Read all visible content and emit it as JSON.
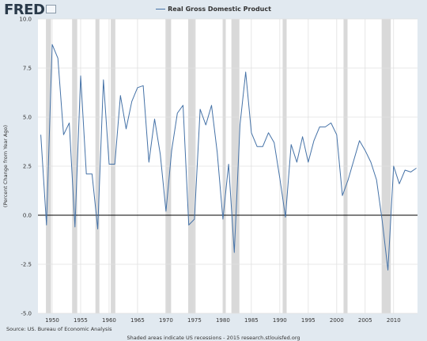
{
  "header": {
    "logo_text": "FRED",
    "logo_icon": "chart-line-icon"
  },
  "footer": {
    "source": "Source: US. Bureau of Economic Analysis",
    "note": "Shaded areas indicate US recessions - 2015 research.stlouisfed.org"
  },
  "colors": {
    "line": "#4572a7",
    "recession": "#d9d9d9",
    "plot_bg": "#ffffff",
    "zero_line": "#000000"
  },
  "chart_data": {
    "type": "line",
    "title": "",
    "legend_position": "top-center",
    "xlabel": "",
    "ylabel": "(Percent Change from Year Ago)",
    "grid": true,
    "xlim": [
      1947.5,
      2014.2
    ],
    "ylim": [
      -5,
      10
    ],
    "x_ticks": [
      1950,
      1955,
      1960,
      1965,
      1970,
      1975,
      1980,
      1985,
      1990,
      1995,
      2000,
      2005,
      2010
    ],
    "y_ticks": [
      -5,
      -2.5,
      0,
      2.5,
      5,
      7.5,
      10
    ],
    "y_tick_labels": [
      "-5.0",
      "-2.5",
      "0.0",
      "2.5",
      "5.0",
      "7.5",
      "10.0"
    ],
    "recessions": [
      [
        1948.9,
        1949.8
      ],
      [
        1953.5,
        1954.4
      ],
      [
        1957.6,
        1958.3
      ],
      [
        1960.3,
        1961.1
      ],
      [
        1969.9,
        1970.9
      ],
      [
        1973.9,
        1975.2
      ],
      [
        1980.0,
        1980.5
      ],
      [
        1981.5,
        1982.9
      ],
      [
        1990.5,
        1991.2
      ],
      [
        2001.2,
        2001.9
      ],
      [
        2007.9,
        2009.5
      ]
    ],
    "series": [
      {
        "name": "Real Gross Domestic Product",
        "x": [
          1948,
          1949,
          1950,
          1951,
          1952,
          1953,
          1954,
          1955,
          1956,
          1957,
          1958,
          1959,
          1960,
          1961,
          1962,
          1963,
          1964,
          1965,
          1966,
          1967,
          1968,
          1969,
          1970,
          1971,
          1972,
          1973,
          1974,
          1975,
          1976,
          1977,
          1978,
          1979,
          1980,
          1981,
          1982,
          1983,
          1984,
          1985,
          1986,
          1987,
          1988,
          1989,
          1990,
          1991,
          1992,
          1993,
          1994,
          1995,
          1996,
          1997,
          1998,
          1999,
          2000,
          2001,
          2002,
          2003,
          2004,
          2005,
          2006,
          2007,
          2008,
          2009,
          2010,
          2011,
          2012,
          2013,
          2014
        ],
        "values": [
          4.1,
          -0.5,
          8.7,
          8.0,
          4.1,
          4.7,
          -0.6,
          7.1,
          2.1,
          2.1,
          -0.7,
          6.9,
          2.6,
          2.6,
          6.1,
          4.4,
          5.8,
          6.5,
          6.6,
          2.7,
          4.9,
          3.1,
          0.2,
          3.3,
          5.2,
          5.6,
          -0.5,
          -0.2,
          5.4,
          4.6,
          5.6,
          3.2,
          -0.2,
          2.6,
          -1.9,
          4.6,
          7.3,
          4.2,
          3.5,
          3.5,
          4.2,
          3.7,
          1.9,
          -0.1,
          3.6,
          2.7,
          4.0,
          2.7,
          3.8,
          4.5,
          4.5,
          4.7,
          4.1,
          1.0,
          1.8,
          2.8,
          3.8,
          3.3,
          2.7,
          1.8,
          -0.3,
          -2.8,
          2.5,
          1.6,
          2.3,
          2.2,
          2.4
        ]
      }
    ]
  }
}
